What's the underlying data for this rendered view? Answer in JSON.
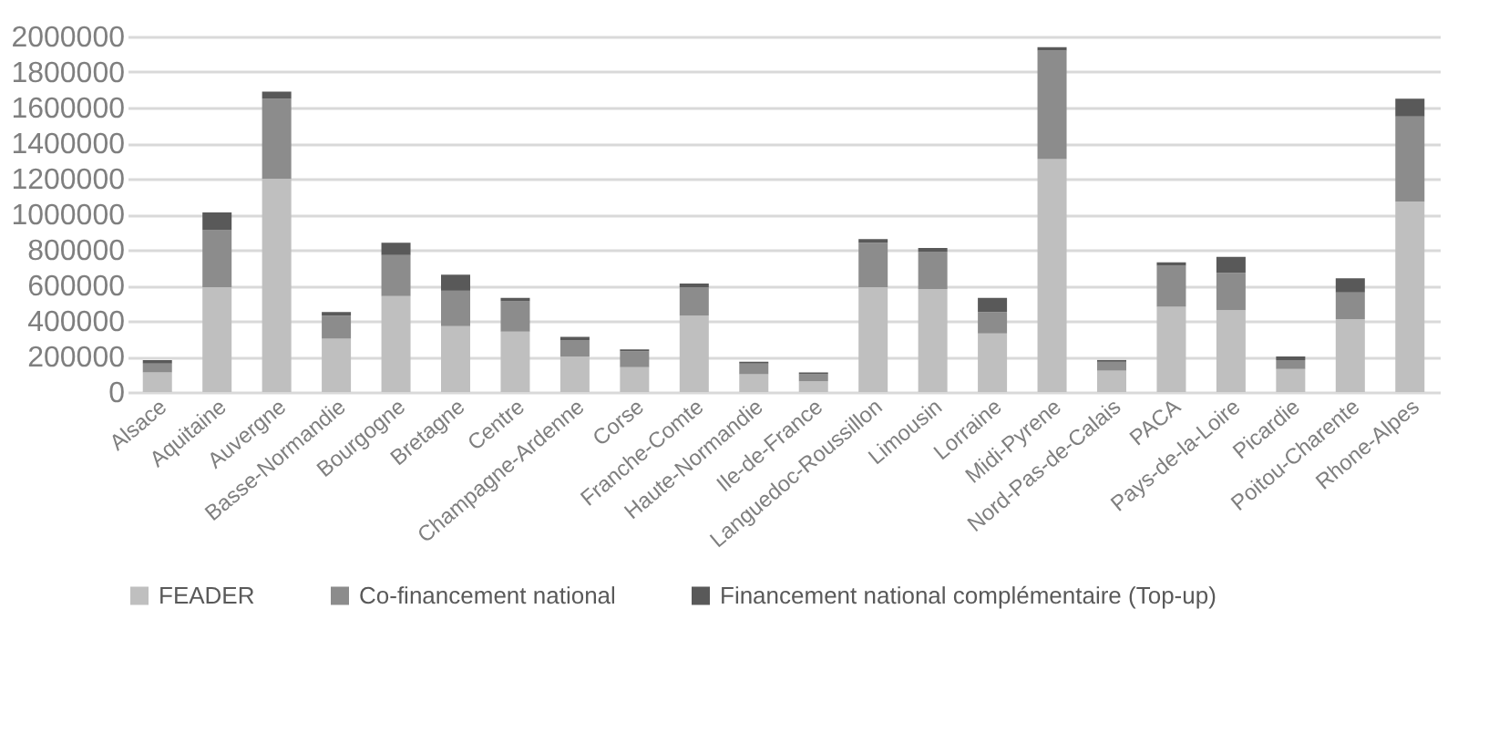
{
  "chart_data": {
    "type": "bar",
    "stacked": true,
    "categories": [
      "Alsace",
      "Aquitaine",
      "Auvergne",
      "Basse-Normandie",
      "Bourgogne",
      "Bretagne",
      "Centre",
      "Champagne-Ardenne",
      "Corse",
      "Franche-Comte",
      "Haute-Normandie",
      "Ile-de-France",
      "Languedoc-Roussillon",
      "Limousin",
      "Lorraine",
      "Midi-Pyrene",
      "Nord-Pas-de-Calais",
      "PACA",
      "Pays-de-la-Loire",
      "Picardie",
      "Poitou-Charente",
      "Rhone-Alpes"
    ],
    "series": [
      {
        "name": "FEADER",
        "color": "#bfbfbf",
        "values": [
          110000,
          590000,
          1200000,
          300000,
          540000,
          370000,
          340000,
          200000,
          140000,
          430000,
          100000,
          60000,
          590000,
          580000,
          330000,
          1310000,
          120000,
          480000,
          460000,
          130000,
          410000,
          1070000
        ]
      },
      {
        "name": "Co-financement national",
        "color": "#8c8c8c",
        "values": [
          50000,
          320000,
          450000,
          130000,
          230000,
          200000,
          170000,
          90000,
          90000,
          160000,
          60000,
          40000,
          250000,
          210000,
          120000,
          610000,
          50000,
          230000,
          210000,
          50000,
          150000,
          480000
        ]
      },
      {
        "name": "Financement national complémentaire (Top-up)",
        "color": "#595959",
        "values": [
          20000,
          100000,
          40000,
          20000,
          70000,
          90000,
          20000,
          20000,
          10000,
          20000,
          10000,
          10000,
          20000,
          20000,
          80000,
          20000,
          10000,
          20000,
          90000,
          20000,
          80000,
          100000
        ]
      }
    ],
    "ylim": [
      0,
      2000000
    ],
    "yticks": [
      0,
      200000,
      400000,
      600000,
      800000,
      1000000,
      1200000,
      1400000,
      1600000,
      1800000,
      2000000
    ],
    "grid": "y",
    "legend": "bottom"
  }
}
